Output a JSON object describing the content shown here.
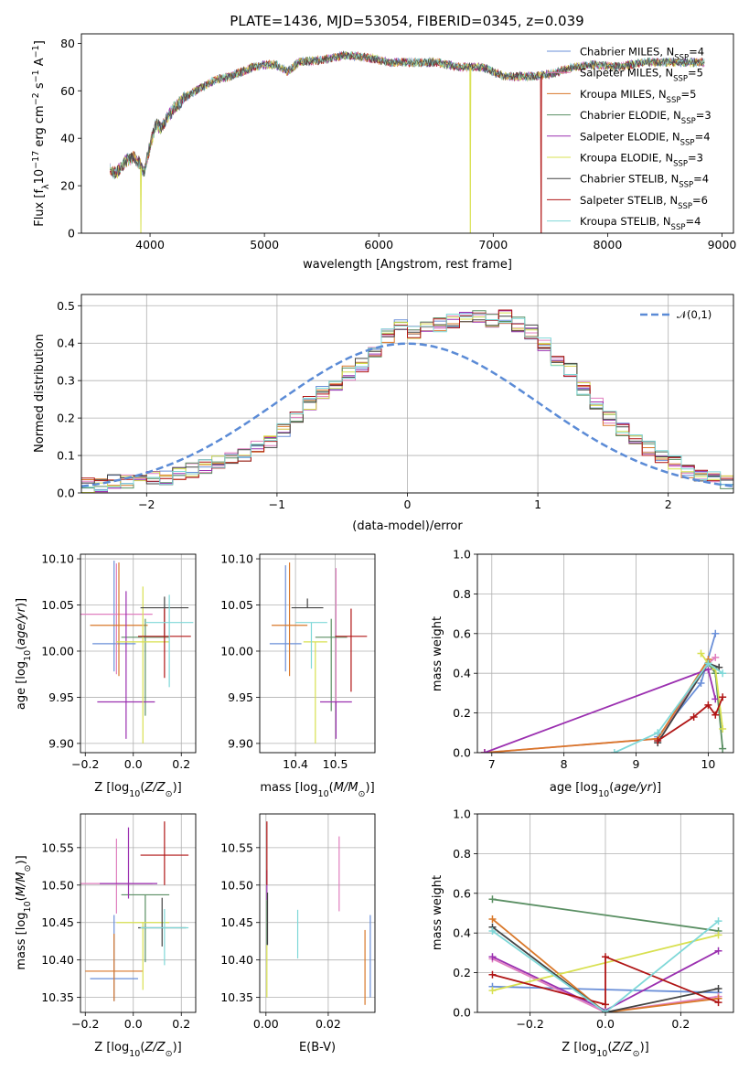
{
  "title": "PLATE=1436, MJD=53054, FIBERID=0345, z=0.039",
  "legend": [
    {
      "label": "Chabrier MILES, N_SSP=4",
      "text": "Chabrier MILES, N",
      "n": "4",
      "color": "#6a8fd8"
    },
    {
      "label": "Salpeter MILES, N_SSP=5",
      "text": "Salpeter MILES, N",
      "n": "5",
      "color": "#e07fbf"
    },
    {
      "label": "Kroupa MILES, N_SSP=5",
      "text": "Kroupa MILES, N",
      "n": "5",
      "color": "#d9782a"
    },
    {
      "label": "Chabrier ELODIE, N_SSP=3",
      "text": "Chabrier ELODIE, N",
      "n": "3",
      "color": "#5a8f63"
    },
    {
      "label": "Salpeter ELODIE, N_SSP=4",
      "text": "Salpeter ELODIE, N",
      "n": "4",
      "color": "#9b30b0"
    },
    {
      "label": "Kroupa ELODIE, N_SSP=3",
      "text": "Kroupa ELODIE, N",
      "n": "3",
      "color": "#d8e050"
    },
    {
      "label": "Chabrier STELIB, N_SSP=4",
      "text": "Chabrier STELIB, N",
      "n": "4",
      "color": "#444444"
    },
    {
      "label": "Salpeter STELIB, N_SSP=6",
      "text": "Salpeter STELIB, N",
      "n": "6",
      "color": "#b01515"
    },
    {
      "label": "Kroupa STELIB, N_SSP=4",
      "text": "Kroupa STELIB, N",
      "n": "4",
      "color": "#7fd8d8"
    }
  ],
  "legend_sub": "SSP",
  "chart_data": [
    {
      "type": "line",
      "id": "spectrum",
      "xlabel": "wavelength [Angstrom, rest frame]",
      "ylabel": "Flux [f_λ 10^-17 erg cm^-2 s^-1 A^-1]",
      "xlim": [
        3400,
        9100
      ],
      "ylim": [
        0,
        84
      ],
      "xticks": [
        4000,
        5000,
        6000,
        7000,
        8000,
        9000
      ],
      "yticks": [
        0,
        20,
        40,
        60,
        80
      ],
      "x": [
        3650,
        3700,
        3750,
        3800,
        3850,
        3900,
        3950,
        4000,
        4050,
        4100,
        4150,
        4200,
        4300,
        4400,
        4500,
        4600,
        4700,
        4800,
        4900,
        5000,
        5100,
        5200,
        5300,
        5500,
        5700,
        5900,
        6100,
        6300,
        6500,
        6700,
        6900,
        7100,
        7300,
        7500,
        7700,
        7900,
        8100,
        8300,
        8500,
        8700,
        8850
      ],
      "y": [
        27,
        25,
        28,
        31,
        32,
        30,
        26,
        37,
        46,
        44,
        49,
        52,
        57,
        60,
        63,
        65,
        66,
        68,
        70,
        71,
        71,
        68,
        72,
        73,
        75,
        74,
        72,
        72,
        72,
        70,
        70,
        66,
        66,
        67,
        70,
        71,
        70,
        72,
        72,
        72,
        72
      ],
      "dropouts": [
        {
          "x": 3920,
          "series": "Kroupa ELODIE"
        },
        {
          "x": 6800,
          "series": "Kroupa ELODIE"
        },
        {
          "x": 7420,
          "series": "Salpeter STELIB"
        }
      ]
    },
    {
      "type": "line",
      "id": "residual-histogram",
      "xlabel": "(data-model)/error",
      "ylabel": "Normed distribution",
      "xlim": [
        -2.5,
        2.5
      ],
      "ylim": [
        0,
        0.53
      ],
      "xticks": [
        -2,
        -1,
        0,
        1,
        2
      ],
      "yticks": [
        0.0,
        0.1,
        0.2,
        0.3,
        0.4,
        0.5
      ],
      "legend": "𝒩(0,1)",
      "gaussian_color": "#5b8bd6",
      "bin_width": 0.1,
      "histogram_envelope": [
        0.02,
        0.02,
        0.03,
        0.03,
        0.03,
        0.04,
        0.04,
        0.05,
        0.06,
        0.07,
        0.08,
        0.09,
        0.1,
        0.12,
        0.14,
        0.17,
        0.2,
        0.24,
        0.27,
        0.29,
        0.32,
        0.34,
        0.37,
        0.42,
        0.45,
        0.43,
        0.44,
        0.45,
        0.46,
        0.47,
        0.47,
        0.46,
        0.47,
        0.45,
        0.43,
        0.4,
        0.36,
        0.33,
        0.28,
        0.24,
        0.2,
        0.17,
        0.15,
        0.12,
        0.1,
        0.08,
        0.06,
        0.05,
        0.04,
        0.03
      ]
    },
    {
      "type": "scatter",
      "id": "age-vs-Z",
      "xlabel": "Z [log10(Z/Z⊙)]",
      "ylabel": "age  [log10(age/yr)]",
      "xlim": [
        -0.22,
        0.26
      ],
      "ylim": [
        9.89,
        10.105
      ],
      "xticks": [
        -0.2,
        0.0,
        0.2
      ],
      "xticklabels": [
        "−0.2",
        "0.0",
        "0.2"
      ],
      "yticks": [
        9.9,
        9.95,
        10.0,
        10.05,
        10.1
      ],
      "yticklabels": [
        "9.90",
        "9.95",
        "10.00",
        "10.05",
        "10.10"
      ],
      "points": [
        {
          "series": "Chabrier MILES",
          "x": -0.08,
          "xerr": 0.09,
          "y": 10.008,
          "yerr_lo": 0.03,
          "yerr_hi": 0.09
        },
        {
          "series": "Salpeter MILES",
          "x": -0.07,
          "xerr": 0.15,
          "y": 10.04,
          "yerr_lo": 0.065,
          "yerr_hi": 0.055
        },
        {
          "series": "Kroupa MILES",
          "x": -0.06,
          "xerr": 0.12,
          "y": 10.028,
          "yerr_lo": 0.055,
          "yerr_hi": 0.068
        },
        {
          "series": "Chabrier ELODIE",
          "x": 0.05,
          "xerr": 0.1,
          "y": 10.015,
          "yerr_lo": 0.085,
          "yerr_hi": 0.02
        },
        {
          "series": "Salpeter ELODIE",
          "x": -0.03,
          "xerr": 0.12,
          "y": 9.945,
          "yerr_lo": 0.04,
          "yerr_hi": 0.12
        },
        {
          "series": "Kroupa ELODIE",
          "x": 0.04,
          "xerr": 0.11,
          "y": 10.01,
          "yerr_lo": 0.11,
          "yerr_hi": 0.06
        },
        {
          "series": "Chabrier STELIB",
          "x": 0.13,
          "xerr": 0.1,
          "y": 10.047,
          "yerr_lo": 0.03,
          "yerr_hi": 0.012
        },
        {
          "series": "Salpeter STELIB",
          "x": 0.13,
          "xerr": 0.11,
          "y": 10.016,
          "yerr_lo": 0.045,
          "yerr_hi": 0.03
        },
        {
          "series": "Kroupa STELIB",
          "x": 0.15,
          "xerr": 0.1,
          "y": 10.031,
          "yerr_lo": 0.07,
          "yerr_hi": 0.03
        }
      ]
    },
    {
      "type": "scatter",
      "id": "age-vs-mass",
      "xlabel": "mass [log10(M/M⊙)]",
      "xlim": [
        10.31,
        10.6
      ],
      "ylim": [
        9.89,
        10.105
      ],
      "xticks": [
        10.4,
        10.5
      ],
      "xticklabels": [
        "10.4",
        "10.5"
      ],
      "yticks": [
        9.9,
        9.95,
        10.0,
        10.05,
        10.1
      ],
      "yticklabels": [
        "9.90",
        "9.95",
        "10.00",
        "10.05",
        "10.10"
      ],
      "points": [
        {
          "series": "Chabrier MILES",
          "x": 10.375,
          "xerr": 0.04,
          "y": 10.008,
          "yerr_lo": 0.03,
          "yerr_hi": 0.085
        },
        {
          "series": "Salpeter MILES",
          "x": 10.502,
          "xerr": 0.0,
          "y": 10.04,
          "yerr_lo": 0.1,
          "yerr_hi": 0.05
        },
        {
          "series": "Kroupa MILES",
          "x": 10.385,
          "xerr": 0.045,
          "y": 10.028,
          "yerr_lo": 0.055,
          "yerr_hi": 0.068
        },
        {
          "series": "Chabrier ELODIE",
          "x": 10.49,
          "xerr": 0.04,
          "y": 10.015,
          "yerr_lo": 0.08,
          "yerr_hi": 0.02
        },
        {
          "series": "Salpeter ELODIE",
          "x": 10.502,
          "xerr": 0.04,
          "y": 9.945,
          "yerr_lo": 0.04,
          "yerr_hi": 0.0
        },
        {
          "series": "Kroupa ELODIE",
          "x": 10.45,
          "xerr": 0.03,
          "y": 10.01,
          "yerr_lo": 0.11,
          "yerr_hi": 0.0
        },
        {
          "series": "Chabrier STELIB",
          "x": 10.43,
          "xerr": 0.04,
          "y": 10.047,
          "yerr_lo": 0.0,
          "yerr_hi": 0.01
        },
        {
          "series": "Salpeter STELIB",
          "x": 10.54,
          "xerr": 0.04,
          "y": 10.016,
          "yerr_lo": 0.06,
          "yerr_hi": 0.03
        },
        {
          "series": "Kroupa STELIB",
          "x": 10.44,
          "xerr": 0.04,
          "y": 10.031,
          "yerr_lo": 0.05,
          "yerr_hi": 0.0
        }
      ]
    },
    {
      "type": "scatter",
      "id": "mass-vs-Z",
      "xlabel": "Z [log10(Z/Z⊙)]",
      "ylabel": "mass [log10(M/M⊙)]",
      "xlim": [
        -0.22,
        0.26
      ],
      "ylim": [
        10.33,
        10.595
      ],
      "xticks": [
        -0.2,
        0.0,
        0.2
      ],
      "xticklabels": [
        "−0.2",
        "0.0",
        "0.2"
      ],
      "yticks": [
        10.35,
        10.4,
        10.45,
        10.5,
        10.55
      ],
      "points": [
        {
          "series": "Chabrier MILES",
          "x": -0.08,
          "xerr": 0.1,
          "y": 10.375,
          "yerr_lo": 0.03,
          "yerr_hi": 0.085
        },
        {
          "series": "Salpeter MILES",
          "x": -0.07,
          "xerr": 0.15,
          "y": 10.502,
          "yerr_lo": 0.04,
          "yerr_hi": 0.06
        },
        {
          "series": "Kroupa MILES",
          "x": -0.08,
          "xerr": 0.12,
          "y": 10.385,
          "yerr_lo": 0.04,
          "yerr_hi": 0.05
        },
        {
          "series": "Chabrier ELODIE",
          "x": 0.05,
          "xerr": 0.1,
          "y": 10.487,
          "yerr_lo": 0.09,
          "yerr_hi": 0.0
        },
        {
          "series": "Salpeter ELODIE",
          "x": -0.02,
          "xerr": 0.12,
          "y": 10.502,
          "yerr_lo": 0.02,
          "yerr_hi": 0.075
        },
        {
          "series": "Kroupa ELODIE",
          "x": 0.04,
          "xerr": 0.11,
          "y": 10.45,
          "yerr_lo": 0.09,
          "yerr_hi": 0.0
        },
        {
          "series": "Chabrier STELIB",
          "x": 0.12,
          "xerr": 0.1,
          "y": 10.443,
          "yerr_lo": 0.025,
          "yerr_hi": 0.04
        },
        {
          "series": "Salpeter STELIB",
          "x": 0.13,
          "xerr": 0.1,
          "y": 10.54,
          "yerr_lo": 0.04,
          "yerr_hi": 0.045
        },
        {
          "series": "Kroupa STELIB",
          "x": 0.13,
          "xerr": 0.1,
          "y": 10.443,
          "yerr_lo": 0.05,
          "yerr_hi": 0.025
        }
      ]
    },
    {
      "type": "scatter",
      "id": "mass-vs-EBV",
      "xlabel": "E(B-V)",
      "xlim": [
        -0.002,
        0.035
      ],
      "ylim": [
        10.33,
        10.595
      ],
      "xticks": [
        0.0,
        0.02
      ],
      "xticklabels": [
        "0.00",
        "0.02"
      ],
      "yticks": [
        10.35,
        10.4,
        10.45,
        10.5,
        10.55
      ],
      "points": [
        {
          "series": "Chabrier MILES",
          "x": 0.0335,
          "y": 10.41,
          "yerr_lo": 0.06,
          "yerr_hi": 0.05
        },
        {
          "series": "Salpeter MILES",
          "x": 0.0235,
          "y": 10.515,
          "yerr_lo": 0.05,
          "yerr_hi": 0.05
        },
        {
          "series": "Kroupa MILES",
          "x": 0.0318,
          "y": 10.39,
          "yerr_lo": 0.05,
          "yerr_hi": 0.05
        },
        {
          "series": "Chabrier ELODIE",
          "x": 0.0003,
          "y": 10.46,
          "yerr_lo": 0.04,
          "yerr_hi": 0.02
        },
        {
          "series": "Salpeter ELODIE",
          "x": 0.0003,
          "y": 10.5,
          "yerr_lo": 0.02,
          "yerr_hi": 0.02
        },
        {
          "series": "Kroupa ELODIE",
          "x": 0.0003,
          "y": 10.4,
          "yerr_lo": 0.05,
          "yerr_hi": 0.02
        },
        {
          "series": "Chabrier STELIB",
          "x": 0.0005,
          "y": 10.45,
          "yerr_lo": 0.03,
          "yerr_hi": 0.04
        },
        {
          "series": "Salpeter STELIB",
          "x": 0.0003,
          "y": 10.54,
          "yerr_lo": 0.04,
          "yerr_hi": 0.045
        },
        {
          "series": "Kroupa STELIB",
          "x": 0.0102,
          "y": 10.432,
          "yerr_lo": 0.03,
          "yerr_hi": 0.035
        }
      ]
    },
    {
      "type": "line",
      "id": "mass-weight-vs-age",
      "xlabel": "age  [log10(age/yr)]",
      "ylabel": "mass weight",
      "xlim": [
        6.8,
        10.35
      ],
      "ylim": [
        0,
        1.0
      ],
      "xticks": [
        7,
        8,
        9,
        10
      ],
      "yticks": [
        0.0,
        0.2,
        0.4,
        0.6,
        0.8,
        1.0
      ],
      "series": [
        {
          "name": "Chabrier MILES",
          "x": [
            9.3,
            9.9,
            10.1
          ],
          "y": [
            0.08,
            0.35,
            0.6
          ]
        },
        {
          "name": "Salpeter MILES",
          "x": [
            6.9,
            9.3,
            10.0,
            10.1
          ],
          "y": [
            0.0,
            0.07,
            0.45,
            0.48
          ]
        },
        {
          "name": "Kroupa MILES",
          "x": [
            6.9,
            9.3,
            10.0,
            10.1
          ],
          "y": [
            0.0,
            0.07,
            0.47,
            0.4
          ]
        },
        {
          "name": "Chabrier ELODIE",
          "x": [
            10.0,
            10.1,
            10.2
          ],
          "y": [
            0.45,
            0.4,
            0.02
          ]
        },
        {
          "name": "Salpeter ELODIE",
          "x": [
            6.9,
            10.0,
            10.1
          ],
          "y": [
            0.0,
            0.42,
            0.27
          ]
        },
        {
          "name": "Kroupa ELODIE",
          "x": [
            9.9,
            10.0,
            10.1,
            10.2
          ],
          "y": [
            0.5,
            0.45,
            0.42,
            0.12
          ]
        },
        {
          "name": "Chabrier STELIB",
          "x": [
            9.3,
            10.0,
            10.15
          ],
          "y": [
            0.05,
            0.45,
            0.43
          ]
        },
        {
          "name": "Salpeter STELIB",
          "x": [
            9.3,
            9.8,
            10.0,
            10.1,
            10.2
          ],
          "y": [
            0.06,
            0.18,
            0.24,
            0.19,
            0.28
          ]
        },
        {
          "name": "Kroupa STELIB",
          "x": [
            8.7,
            9.3,
            10.0,
            10.2
          ],
          "y": [
            0.0,
            0.1,
            0.45,
            0.4
          ]
        }
      ]
    },
    {
      "type": "line",
      "id": "mass-weight-vs-Z",
      "xlabel": "Z [log10(Z/Z⊙)]",
      "ylabel": "mass weight",
      "xlim": [
        -0.34,
        0.34
      ],
      "ylim": [
        0,
        1.0
      ],
      "xticks": [
        -0.2,
        0.0,
        0.2
      ],
      "xticklabels": [
        "−0.2",
        "0.0",
        "0.2"
      ],
      "yticks": [
        0.0,
        0.2,
        0.4,
        0.6,
        0.8,
        1.0
      ],
      "series": [
        {
          "name": "Chabrier MILES",
          "x": [
            -0.3,
            0.3
          ],
          "y": [
            0.13,
            0.1
          ]
        },
        {
          "name": "Salpeter MILES",
          "x": [
            -0.3,
            0.0,
            0.3
          ],
          "y": [
            0.27,
            0.0,
            0.08
          ]
        },
        {
          "name": "Kroupa MILES",
          "x": [
            -0.3,
            0.0,
            0.3
          ],
          "y": [
            0.47,
            0.0,
            0.07
          ]
        },
        {
          "name": "Chabrier ELODIE",
          "x": [
            -0.3,
            0.3
          ],
          "y": [
            0.57,
            0.41
          ]
        },
        {
          "name": "Salpeter ELODIE",
          "x": [
            -0.3,
            0.0,
            0.3
          ],
          "y": [
            0.28,
            0.01,
            0.31
          ]
        },
        {
          "name": "Kroupa ELODIE",
          "x": [
            -0.3,
            0.3
          ],
          "y": [
            0.11,
            0.39
          ]
        },
        {
          "name": "Chabrier STELIB",
          "x": [
            -0.3,
            0.0,
            0.3
          ],
          "y": [
            0.43,
            0.0,
            0.12
          ]
        },
        {
          "name": "Salpeter STELIB",
          "x": [
            -0.3,
            0.0,
            0.0,
            0.3
          ],
          "y": [
            0.19,
            0.04,
            0.28,
            0.05
          ]
        },
        {
          "name": "Kroupa STELIB",
          "x": [
            -0.3,
            0.0,
            0.3
          ],
          "y": [
            0.41,
            0.0,
            0.46
          ]
        }
      ]
    }
  ]
}
